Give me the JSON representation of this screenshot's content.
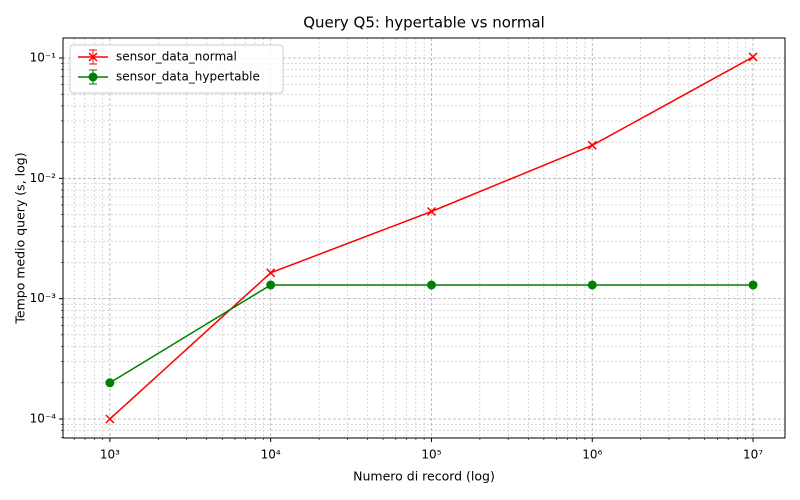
{
  "chart_data": {
    "type": "line",
    "title": "Query Q5: hypertable vs normal",
    "x_label": "Numero di record (log)",
    "y_label": "Tempo medio query (s, log)",
    "x": [
      1000,
      10000,
      100000,
      1000000,
      10000000
    ],
    "series": [
      {
        "name": "sensor_data_normal",
        "color": "#ff0000",
        "marker": "x",
        "values": [
          0.0001,
          0.00164,
          0.0053,
          0.0188,
          0.102
        ]
      },
      {
        "name": "sensor_data_hypertable",
        "color": "#008000",
        "marker": "o",
        "values": [
          0.0002,
          0.0013,
          0.0013,
          0.0013,
          0.0013
        ]
      }
    ],
    "xlog": true,
    "ylog": true,
    "xlim": [
      511,
      15800000
    ],
    "ylim": [
      6.95e-05,
      0.1466
    ],
    "xticks": [
      {
        "value": 1000,
        "label": "10³"
      },
      {
        "value": 10000,
        "label": "10⁴"
      },
      {
        "value": 100000,
        "label": "10⁵"
      },
      {
        "value": 1000000,
        "label": "10⁶"
      },
      {
        "value": 10000000,
        "label": "10⁷"
      }
    ],
    "yticks": [
      {
        "value": 0.0001,
        "label": "10⁻⁴"
      },
      {
        "value": 0.001,
        "label": "10⁻³"
      },
      {
        "value": 0.01,
        "label": "10⁻²"
      },
      {
        "value": 0.1,
        "label": "10⁻¹"
      }
    ],
    "grid": true,
    "legend": "upper left"
  }
}
